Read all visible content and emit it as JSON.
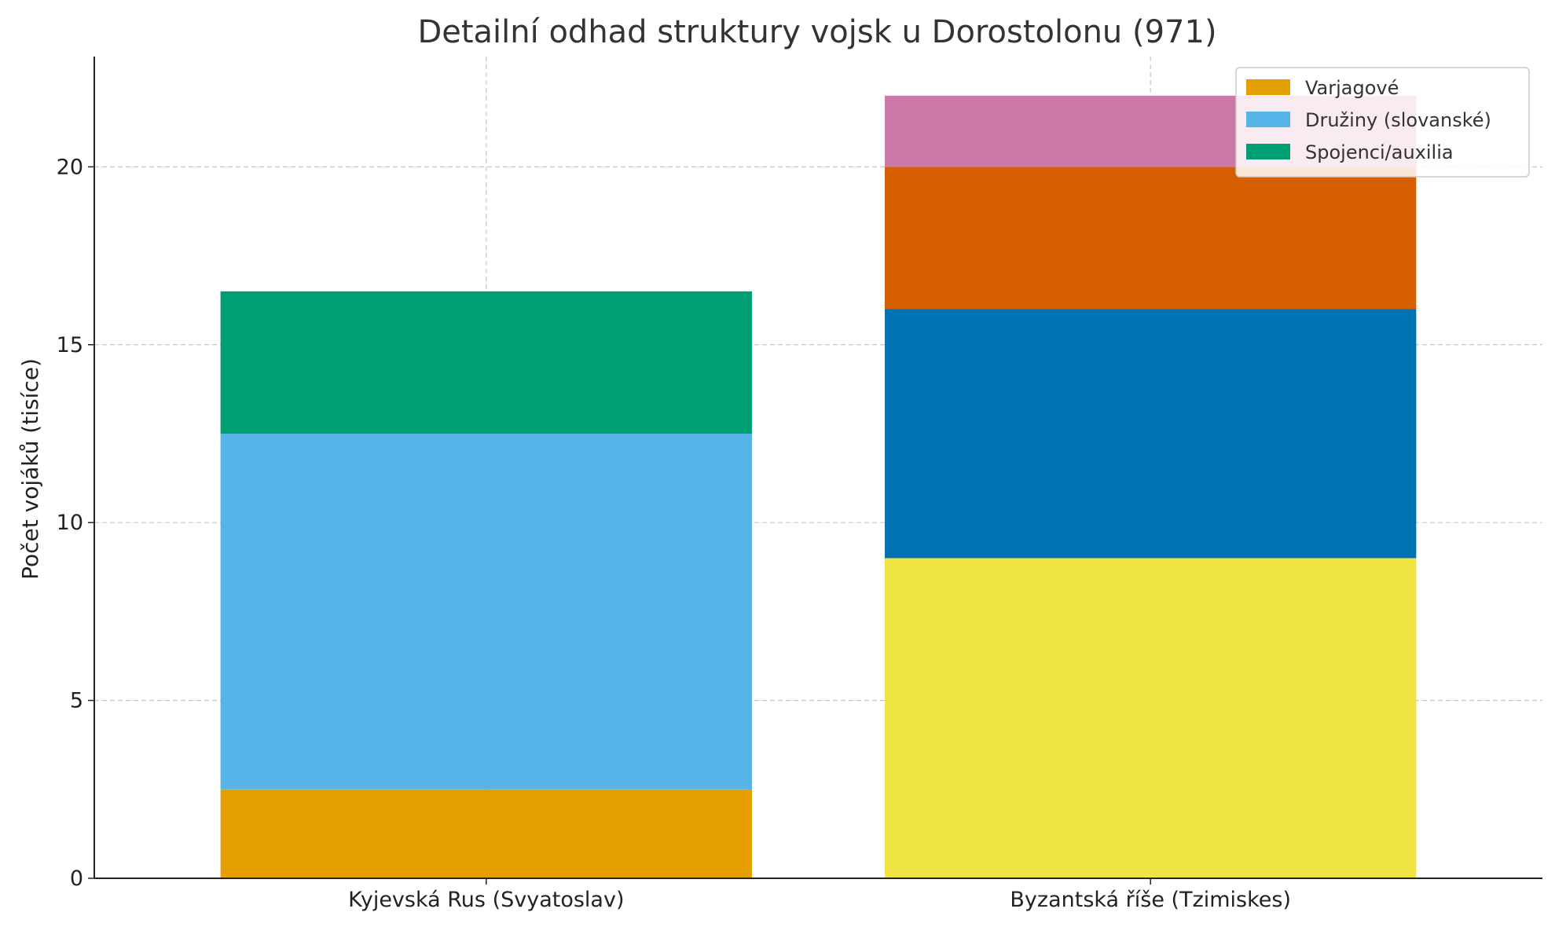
{
  "chart_data": {
    "type": "bar",
    "stacked": true,
    "title": "Detailní odhad struktury vojsk u Dorostolonu (971)",
    "xlabel": "",
    "ylabel": "Počet vojáků (tisíce)",
    "ylim": [
      0,
      23.1
    ],
    "yticks": [
      0,
      5,
      10,
      15,
      20
    ],
    "grid": true,
    "legend_position": "top-right",
    "categories": [
      "Kyjevská Rus (Svyatoslav)",
      "Byzantská říše (Tzimiskes)"
    ],
    "series": [
      {
        "name": "Varjagové",
        "color": "#E69F00",
        "values": [
          2.5,
          0
        ]
      },
      {
        "name": "Družiny (slovanské)",
        "color": "#56B4E9",
        "values": [
          10,
          0
        ]
      },
      {
        "name": "Spojenci/auxilia",
        "color": "#009E73",
        "values": [
          4,
          0
        ]
      },
      {
        "color": "#F0E442",
        "values": [
          0,
          9
        ]
      },
      {
        "color": "#0072B2",
        "values": [
          0,
          7
        ]
      },
      {
        "color": "#D55E00",
        "values": [
          0,
          4
        ]
      },
      {
        "color": "#CC79A7",
        "values": [
          0,
          2
        ]
      }
    ]
  }
}
